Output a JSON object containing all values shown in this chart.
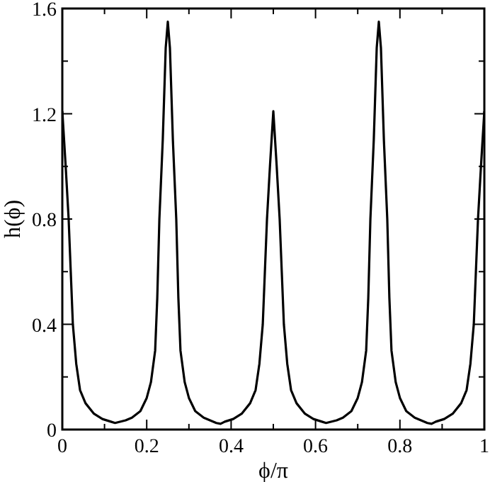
{
  "chart_data": {
    "type": "line",
    "xlabel": "ϕ/π",
    "ylabel": "h(ϕ)",
    "xlim": [
      0,
      1
    ],
    "ylim": [
      0,
      1.6
    ],
    "xticks": [
      0,
      {
        "value": 0.1,
        "label": null
      },
      0.2,
      {
        "value": 0.3,
        "label": null
      },
      0.4,
      {
        "value": 0.5,
        "label": null
      },
      0.6,
      {
        "value": 0.7,
        "label": null
      },
      0.8,
      {
        "value": 0.9,
        "label": null
      },
      1
    ],
    "yticks": [
      0,
      {
        "value": 0.2,
        "label": null
      },
      0.4,
      {
        "value": 0.6,
        "label": null
      },
      0.8,
      {
        "value": 1.0,
        "label": null
      },
      1.2,
      {
        "value": 1.4,
        "label": null
      },
      1.6
    ],
    "grid": false,
    "marker": "none",
    "line_style": "solid",
    "series": [
      {
        "color": "#000000",
        "x": [
          0,
          0.008,
          0.015,
          0.02,
          0.025,
          0.033,
          0.042,
          0.055,
          0.075,
          0.095,
          0.115,
          0.125,
          0.15,
          0.165,
          0.185,
          0.2,
          0.21,
          0.22,
          0.225,
          0.23,
          0.238,
          0.245,
          0.25,
          0.255,
          0.262,
          0.27,
          0.275,
          0.28,
          0.29,
          0.3,
          0.315,
          0.335,
          0.35,
          0.365,
          0.375,
          0.385,
          0.405,
          0.425,
          0.445,
          0.458,
          0.467,
          0.475,
          0.48,
          0.485,
          0.492,
          0.5,
          0.508,
          0.515,
          0.52,
          0.525,
          0.533,
          0.542,
          0.555,
          0.575,
          0.595,
          0.615,
          0.625,
          0.65,
          0.665,
          0.685,
          0.7,
          0.71,
          0.72,
          0.725,
          0.73,
          0.738,
          0.745,
          0.75,
          0.755,
          0.762,
          0.77,
          0.775,
          0.78,
          0.79,
          0.8,
          0.815,
          0.835,
          0.85,
          0.865,
          0.875,
          0.885,
          0.905,
          0.925,
          0.945,
          0.958,
          0.967,
          0.975,
          0.98,
          0.985,
          0.992,
          1
        ],
        "values": [
          1.21,
          1.0,
          0.8,
          0.6,
          0.4,
          0.25,
          0.15,
          0.1,
          0.06,
          0.04,
          0.03,
          0.025,
          0.035,
          0.045,
          0.07,
          0.12,
          0.18,
          0.3,
          0.5,
          0.8,
          1.1,
          1.45,
          1.55,
          1.45,
          1.1,
          0.8,
          0.5,
          0.3,
          0.18,
          0.12,
          0.07,
          0.045,
          0.035,
          0.025,
          0.022,
          0.03,
          0.04,
          0.06,
          0.1,
          0.15,
          0.25,
          0.4,
          0.6,
          0.8,
          1.0,
          1.21,
          1.0,
          0.8,
          0.6,
          0.4,
          0.25,
          0.15,
          0.1,
          0.06,
          0.04,
          0.03,
          0.025,
          0.035,
          0.045,
          0.07,
          0.12,
          0.18,
          0.3,
          0.5,
          0.8,
          1.1,
          1.45,
          1.55,
          1.45,
          1.1,
          0.8,
          0.5,
          0.3,
          0.18,
          0.12,
          0.07,
          0.045,
          0.035,
          0.025,
          0.022,
          0.03,
          0.04,
          0.06,
          0.1,
          0.15,
          0.25,
          0.4,
          0.6,
          0.8,
          1.0,
          1.21
        ]
      }
    ]
  }
}
